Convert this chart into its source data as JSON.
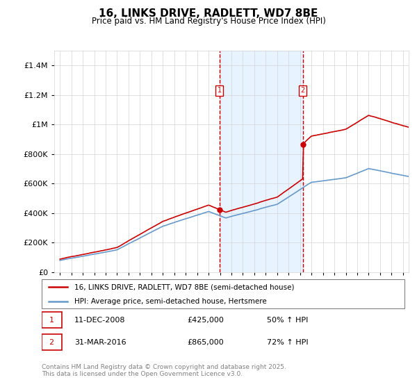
{
  "title": "16, LINKS DRIVE, RADLETT, WD7 8BE",
  "subtitle": "Price paid vs. HM Land Registry's House Price Index (HPI)",
  "legend_line1": "16, LINKS DRIVE, RADLETT, WD7 8BE (semi-detached house)",
  "legend_line2": "HPI: Average price, semi-detached house, Hertsmere",
  "footer": "Contains HM Land Registry data © Crown copyright and database right 2025.\nThis data is licensed under the Open Government Licence v3.0.",
  "purchase1_date": "11-DEC-2008",
  "purchase1_price": 425000,
  "purchase1_hpi": "50% ↑ HPI",
  "purchase2_date": "31-MAR-2016",
  "purchase2_price": 865000,
  "purchase2_hpi": "72% ↑ HPI",
  "vline1_x": 2008.94,
  "vline2_x": 2016.25,
  "ylim": [
    0,
    1500000
  ],
  "xlim": [
    1994.5,
    2025.5
  ],
  "line_color_red": "#cc0000",
  "line_color_blue": "#6699cc",
  "vline_color": "#cc0000",
  "shade_color": "#ddeeff",
  "dot1_x": 2008.94,
  "dot1_y": 425000,
  "dot2_x": 2016.25,
  "dot2_y": 865000,
  "yticks": [
    0,
    200000,
    400000,
    600000,
    800000,
    1000000,
    1200000,
    1400000
  ],
  "ytick_labels": [
    "£0",
    "£200K",
    "£400K",
    "£600K",
    "£800K",
    "£1M",
    "£1.2M",
    "£1.4M"
  ],
  "xticks": [
    1995,
    1996,
    1997,
    1998,
    1999,
    2000,
    2001,
    2002,
    2003,
    2004,
    2005,
    2006,
    2007,
    2008,
    2009,
    2010,
    2011,
    2012,
    2013,
    2014,
    2015,
    2016,
    2017,
    2018,
    2019,
    2020,
    2021,
    2022,
    2023,
    2024,
    2025
  ]
}
